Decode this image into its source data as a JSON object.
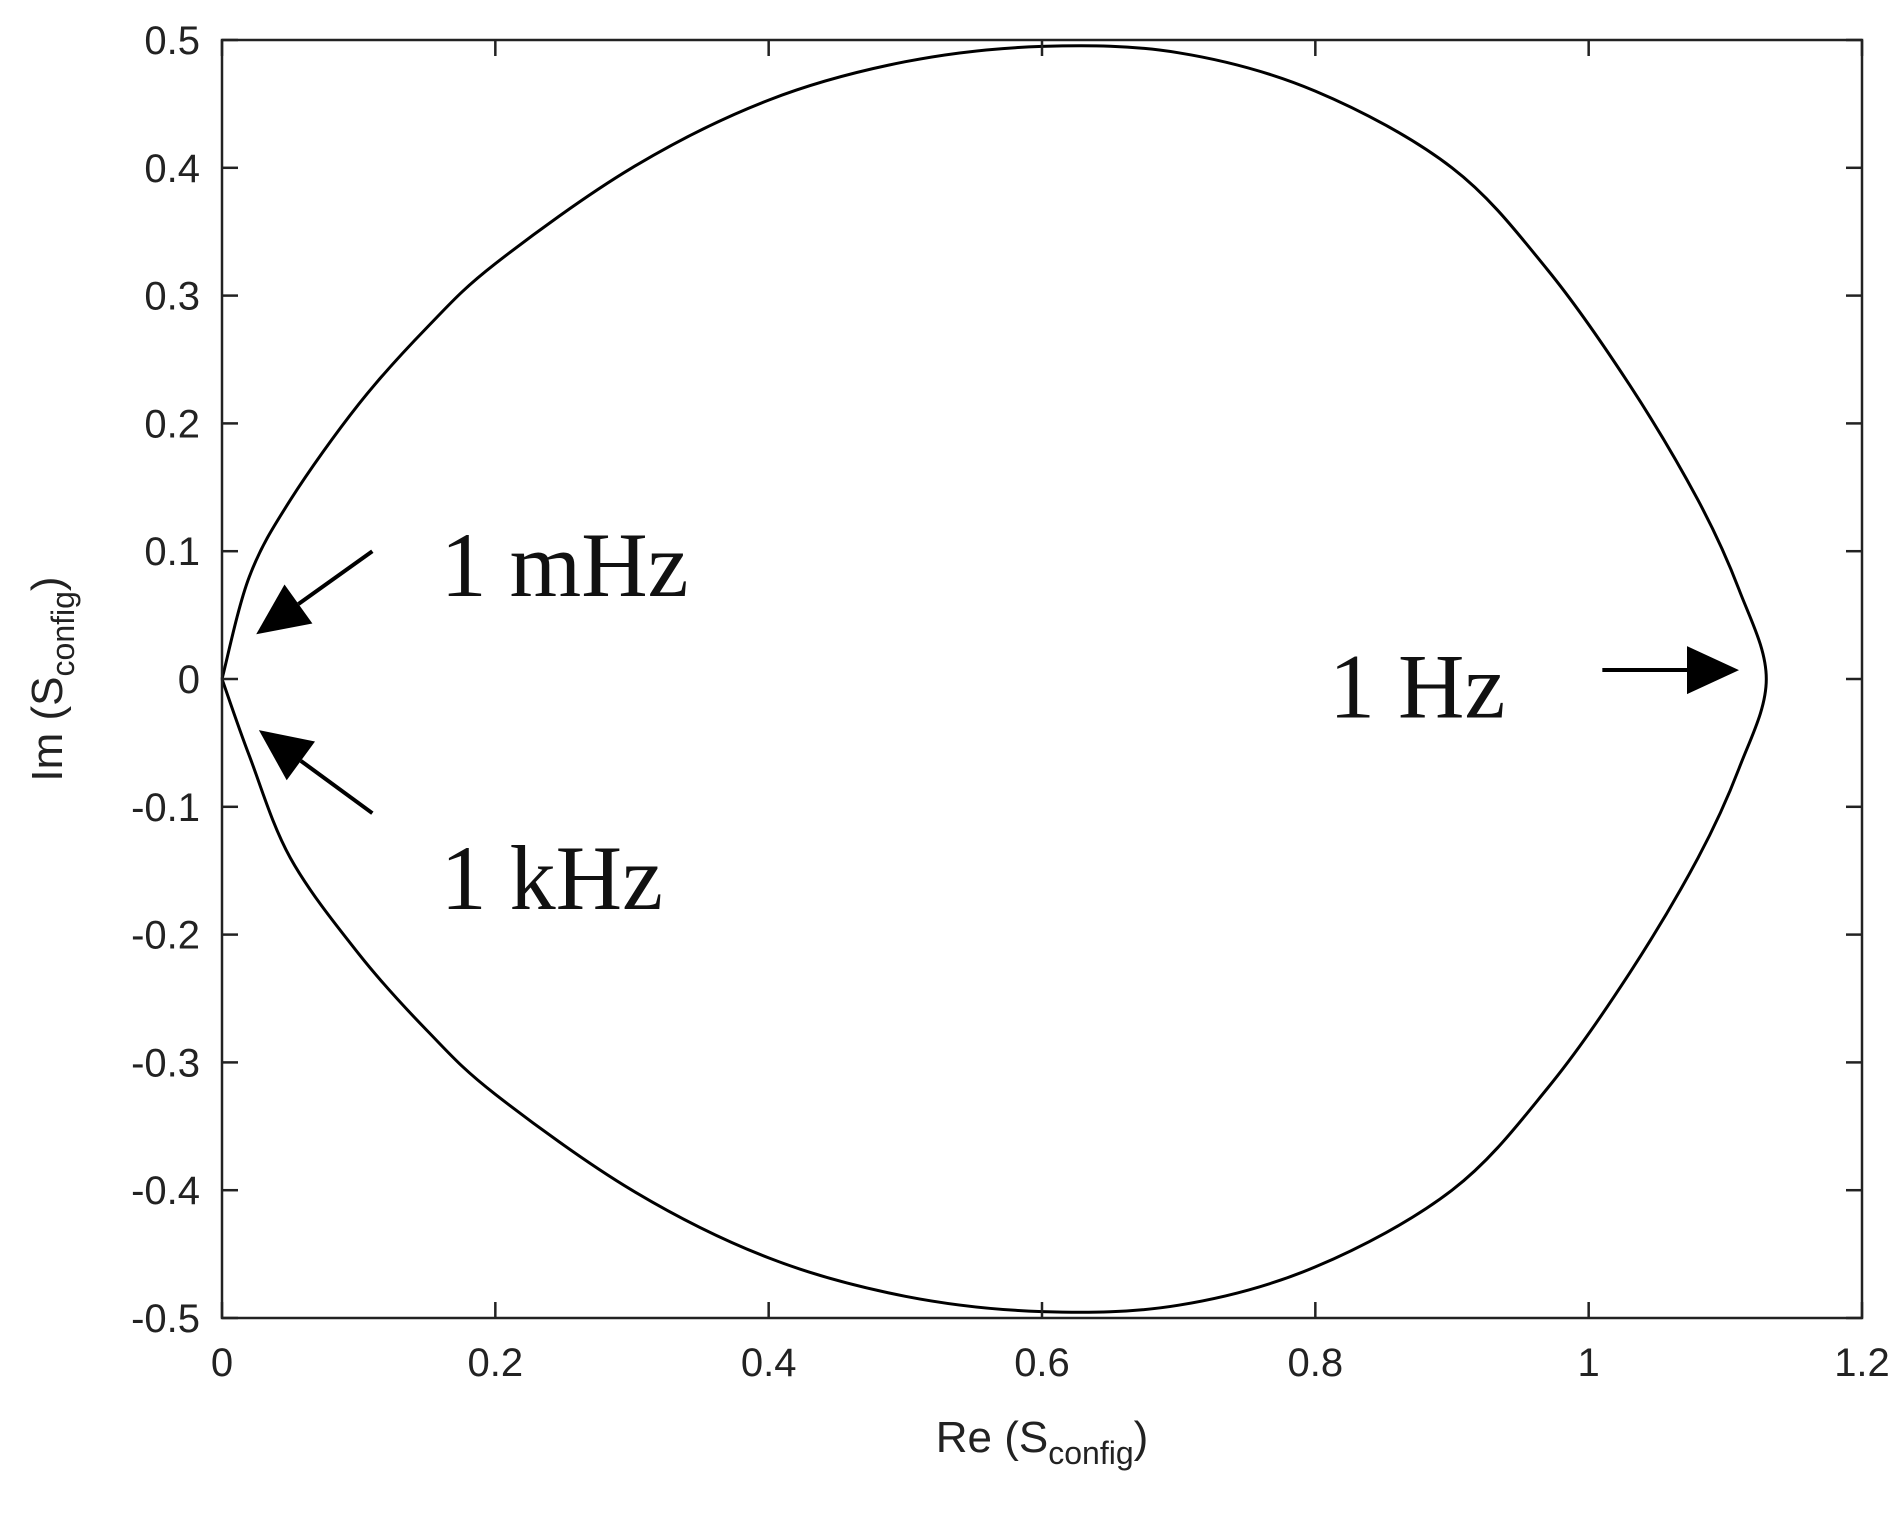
{
  "chart_data": {
    "type": "line",
    "title": "",
    "xlabel": {
      "main": "Re (S",
      "sub": "config",
      "end": ")"
    },
    "ylabel": {
      "main": "Im (S",
      "sub": "config",
      "end": ")"
    },
    "xlim": [
      0,
      1.2
    ],
    "ylim": [
      -0.5,
      0.5
    ],
    "x_ticks": [
      0,
      0.2,
      0.4,
      0.6,
      0.8,
      1,
      1.2
    ],
    "y_ticks": [
      0.5,
      0.4,
      0.3,
      0.2,
      0.1,
      0,
      -0.1,
      -0.2,
      -0.3,
      -0.4,
      -0.5
    ],
    "x_tick_labels": [
      "0",
      "0.2",
      "0.4",
      "0.6",
      "0.8",
      "1",
      "1.2"
    ],
    "y_tick_labels": [
      "0.5",
      "0.4",
      "0.3",
      "0.2",
      "0.1",
      "0",
      "-0.1",
      "-0.2",
      "-0.3",
      "-0.4",
      "-0.5"
    ],
    "grid": false,
    "series": [
      {
        "color": "#000000",
        "points": [
          [
            0.0,
            0.0
          ],
          [
            0.02,
            0.08
          ],
          [
            0.05,
            0.14
          ],
          [
            0.1,
            0.215
          ],
          [
            0.15,
            0.275
          ],
          [
            0.2,
            0.325
          ],
          [
            0.3,
            0.4
          ],
          [
            0.4,
            0.453
          ],
          [
            0.5,
            0.483
          ],
          [
            0.6,
            0.495
          ],
          [
            0.7,
            0.49
          ],
          [
            0.8,
            0.46
          ],
          [
            0.9,
            0.4
          ],
          [
            0.97,
            0.32
          ],
          [
            1.03,
            0.23
          ],
          [
            1.08,
            0.14
          ],
          [
            1.11,
            0.07
          ],
          [
            1.13,
            0.0
          ],
          [
            1.11,
            -0.07
          ],
          [
            1.08,
            -0.14
          ],
          [
            1.03,
            -0.23
          ],
          [
            0.97,
            -0.32
          ],
          [
            0.9,
            -0.4
          ],
          [
            0.8,
            -0.46
          ],
          [
            0.7,
            -0.49
          ],
          [
            0.6,
            -0.495
          ],
          [
            0.5,
            -0.483
          ],
          [
            0.4,
            -0.453
          ],
          [
            0.3,
            -0.4
          ],
          [
            0.2,
            -0.325
          ],
          [
            0.15,
            -0.275
          ],
          [
            0.1,
            -0.215
          ],
          [
            0.05,
            -0.14
          ],
          [
            0.02,
            -0.06
          ],
          [
            0.0,
            0.0
          ]
        ]
      }
    ],
    "annotations": [
      {
        "id": "mhz",
        "text": "1 mHz",
        "text_at": [
          0.16,
          0.065
        ],
        "arrow_from": [
          0.11,
          0.1
        ],
        "arrow_to": [
          0.025,
          0.035
        ]
      },
      {
        "id": "khz",
        "text": "1 kHz",
        "text_at": [
          0.16,
          -0.18
        ],
        "arrow_from": [
          0.11,
          -0.105
        ],
        "arrow_to": [
          0.027,
          -0.04
        ]
      },
      {
        "id": "hz",
        "text": "1 Hz",
        "text_at": [
          0.81,
          -0.03
        ],
        "arrow_from": [
          1.01,
          0.007
        ],
        "arrow_to": [
          1.11,
          0.007
        ]
      }
    ]
  }
}
